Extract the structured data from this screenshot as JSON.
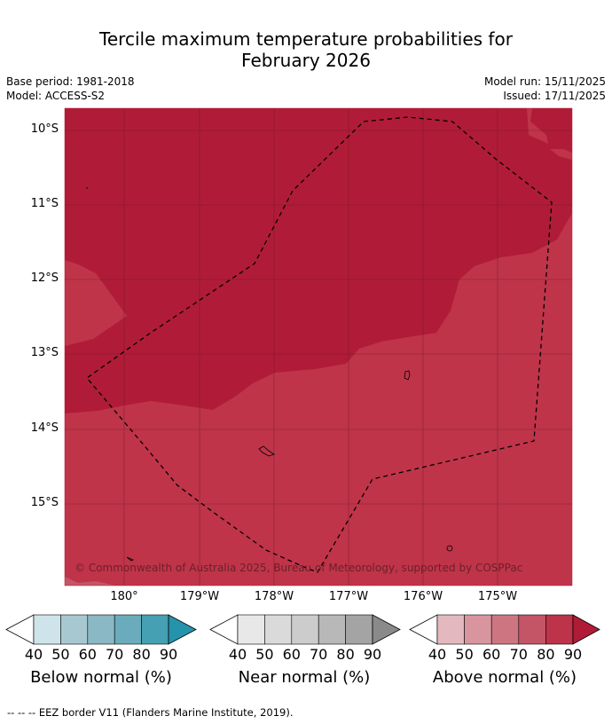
{
  "title_line1": "Tercile maximum temperature probabilities for",
  "title_line2": "February 2026",
  "base_period": "Base period: 1981-2018",
  "model": "Model: ACCESS-S2",
  "model_run": "Model run: 15/11/2025",
  "issued": "Issued: 17/11/2025",
  "map": {
    "lat_ticks": [
      "10°S",
      "11°S",
      "12°S",
      "13°S",
      "14°S",
      "15°S"
    ],
    "lon_ticks": [
      "180°",
      "179°W",
      "178°W",
      "177°W",
      "176°W",
      "175°W"
    ],
    "copyright": "© Commonwealth of Australia 2025, Bureau of Meteorology, supported by COSPPac",
    "colors": {
      "above_90": "#b01c37",
      "above_80": "#bf3449",
      "land_outline": "#000000"
    }
  },
  "colorbars": [
    {
      "label": "Below normal (%)",
      "ticks": [
        "40",
        "50",
        "60",
        "70",
        "80",
        "90"
      ],
      "colors": [
        "#cfe3ea",
        "#a7c8d1",
        "#8ab8c4",
        "#6aacbb",
        "#45a0b3",
        "#2593ab"
      ]
    },
    {
      "label": "Near normal (%)",
      "ticks": [
        "40",
        "50",
        "60",
        "70",
        "80",
        "90"
      ],
      "colors": [
        "#e8e8e8",
        "#dadada",
        "#cccccc",
        "#b8b8b8",
        "#a4a4a4",
        "#8a8a8a"
      ]
    },
    {
      "label": "Above normal (%)",
      "ticks": [
        "40",
        "50",
        "60",
        "70",
        "80",
        "90"
      ],
      "colors": [
        "#e3b9bf",
        "#d9959d",
        "#cd7681",
        "#c45566",
        "#bd3349",
        "#b01c37"
      ]
    }
  ],
  "footer": "--  --  -- EEZ border V11 (Flanders Marine Institute, 2019)."
}
